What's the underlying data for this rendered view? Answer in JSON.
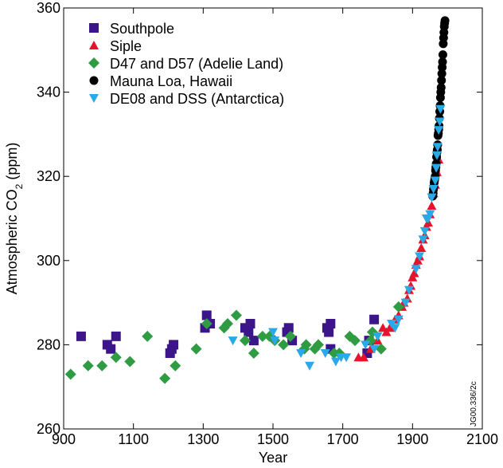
{
  "chart_data": {
    "type": "scatter",
    "title": "",
    "xlabel": "Year",
    "ylabel_main": "Atmospheric CO",
    "ylabel_sub": "2",
    "ylabel_unit": " (ppm)",
    "xlim": [
      900,
      2100
    ],
    "ylim": [
      260,
      360
    ],
    "xticks": [
      900,
      1100,
      1300,
      1500,
      1700,
      1900,
      2100
    ],
    "yticks": [
      260,
      280,
      300,
      320,
      340,
      360
    ],
    "grid": false,
    "legend_position": "top-left",
    "annotation": "JG00.336/2c",
    "series": [
      {
        "name": "Southpole",
        "marker": "square",
        "color": "#3b1589",
        "points": [
          [
            950,
            282
          ],
          [
            1025,
            280
          ],
          [
            1035,
            279
          ],
          [
            1050,
            282
          ],
          [
            1205,
            278
          ],
          [
            1210,
            279
          ],
          [
            1215,
            280
          ],
          [
            1305,
            284
          ],
          [
            1310,
            287
          ],
          [
            1320,
            285
          ],
          [
            1420,
            284
          ],
          [
            1430,
            283
          ],
          [
            1435,
            285
          ],
          [
            1445,
            281
          ],
          [
            1540,
            283
          ],
          [
            1545,
            284
          ],
          [
            1555,
            281
          ],
          [
            1655,
            284
          ],
          [
            1660,
            283
          ],
          [
            1665,
            285
          ],
          [
            1665,
            279
          ],
          [
            1770,
            278
          ],
          [
            1775,
            281
          ],
          [
            1790,
            286
          ]
        ]
      },
      {
        "name": "Siple",
        "marker": "triangle-up",
        "color": "#e5142c",
        "points": [
          [
            1745,
            277
          ],
          [
            1760,
            277
          ],
          [
            1780,
            279
          ],
          [
            1800,
            281
          ],
          [
            1815,
            284
          ],
          [
            1825,
            283
          ],
          [
            1835,
            284
          ],
          [
            1850,
            286
          ],
          [
            1860,
            287
          ],
          [
            1870,
            289
          ],
          [
            1875,
            290
          ],
          [
            1885,
            291
          ],
          [
            1890,
            293
          ],
          [
            1895,
            294
          ],
          [
            1900,
            296
          ],
          [
            1905,
            297
          ],
          [
            1910,
            299
          ],
          [
            1915,
            300
          ],
          [
            1920,
            301
          ],
          [
            1925,
            303
          ],
          [
            1930,
            305
          ],
          [
            1935,
            306
          ],
          [
            1940,
            308
          ],
          [
            1945,
            309
          ],
          [
            1950,
            311
          ],
          [
            1955,
            313
          ],
          [
            1960,
            316
          ],
          [
            1965,
            318
          ],
          [
            1970,
            321
          ],
          [
            1975,
            324
          ]
        ]
      },
      {
        "name": "D47 and D57 (Adelie Land)",
        "marker": "diamond",
        "color": "#2f9c43",
        "points": [
          [
            920,
            273
          ],
          [
            970,
            275
          ],
          [
            1010,
            275
          ],
          [
            1050,
            277
          ],
          [
            1090,
            276
          ],
          [
            1140,
            282
          ],
          [
            1190,
            272
          ],
          [
            1220,
            275
          ],
          [
            1280,
            279
          ],
          [
            1310,
            285
          ],
          [
            1360,
            284
          ],
          [
            1370,
            285
          ],
          [
            1395,
            287
          ],
          [
            1420,
            281
          ],
          [
            1445,
            278
          ],
          [
            1470,
            282
          ],
          [
            1490,
            282
          ],
          [
            1505,
            281
          ],
          [
            1530,
            280
          ],
          [
            1550,
            282
          ],
          [
            1590,
            279
          ],
          [
            1595,
            280
          ],
          [
            1620,
            279
          ],
          [
            1630,
            280
          ],
          [
            1675,
            278
          ],
          [
            1690,
            278
          ],
          [
            1720,
            282
          ],
          [
            1735,
            281
          ],
          [
            1780,
            281
          ],
          [
            1785,
            283
          ],
          [
            1810,
            279
          ],
          [
            1860,
            289
          ]
        ]
      },
      {
        "name": "Mauna Loa, Hawaii",
        "marker": "circle",
        "color": "#000000",
        "points": [
          [
            1958,
            315.3
          ],
          [
            1959,
            316
          ],
          [
            1960,
            316.9
          ],
          [
            1961,
            317.6
          ],
          [
            1962,
            318.5
          ],
          [
            1963,
            319
          ],
          [
            1964,
            319.6
          ],
          [
            1965,
            320
          ],
          [
            1966,
            321.4
          ],
          [
            1967,
            322.2
          ],
          [
            1968,
            323
          ],
          [
            1969,
            324.6
          ],
          [
            1970,
            325.7
          ],
          [
            1971,
            326.3
          ],
          [
            1972,
            327.5
          ],
          [
            1973,
            329.7
          ],
          [
            1974,
            330.2
          ],
          [
            1975,
            331.1
          ],
          [
            1976,
            332
          ],
          [
            1977,
            333.8
          ],
          [
            1978,
            335.4
          ],
          [
            1979,
            336.8
          ],
          [
            1980,
            338.7
          ],
          [
            1981,
            340
          ],
          [
            1982,
            341.1
          ],
          [
            1983,
            342.8
          ],
          [
            1984,
            344.4
          ],
          [
            1985,
            345.9
          ],
          [
            1986,
            347.2
          ],
          [
            1987,
            348.9
          ],
          [
            1988,
            351.5
          ],
          [
            1989,
            352.9
          ],
          [
            1990,
            354.2
          ],
          [
            1991,
            355.6
          ],
          [
            1992,
            356.4
          ],
          [
            1993,
            357
          ]
        ]
      },
      {
        "name": "DE08 and DSS (Antarctica)",
        "marker": "triangle-down",
        "color": "#2aa9e8",
        "points": [
          [
            1385,
            281
          ],
          [
            1500,
            283
          ],
          [
            1505,
            281
          ],
          [
            1580,
            278
          ],
          [
            1605,
            275
          ],
          [
            1650,
            278
          ],
          [
            1680,
            276
          ],
          [
            1695,
            277
          ],
          [
            1710,
            277
          ],
          [
            1765,
            280
          ],
          [
            1790,
            279
          ],
          [
            1800,
            282
          ],
          [
            1840,
            285
          ],
          [
            1850,
            284
          ],
          [
            1860,
            286
          ],
          [
            1880,
            290
          ],
          [
            1890,
            293
          ],
          [
            1910,
            298
          ],
          [
            1920,
            301
          ],
          [
            1930,
            305
          ],
          [
            1935,
            307
          ],
          [
            1940,
            310
          ],
          [
            1945,
            310
          ],
          [
            1950,
            311
          ],
          [
            1955,
            315
          ],
          [
            1960,
            317
          ],
          [
            1965,
            319
          ],
          [
            1968,
            322
          ],
          [
            1970,
            325
          ],
          [
            1972,
            327
          ],
          [
            1975,
            331
          ],
          [
            1978,
            333
          ],
          [
            1980,
            336
          ]
        ]
      }
    ]
  }
}
